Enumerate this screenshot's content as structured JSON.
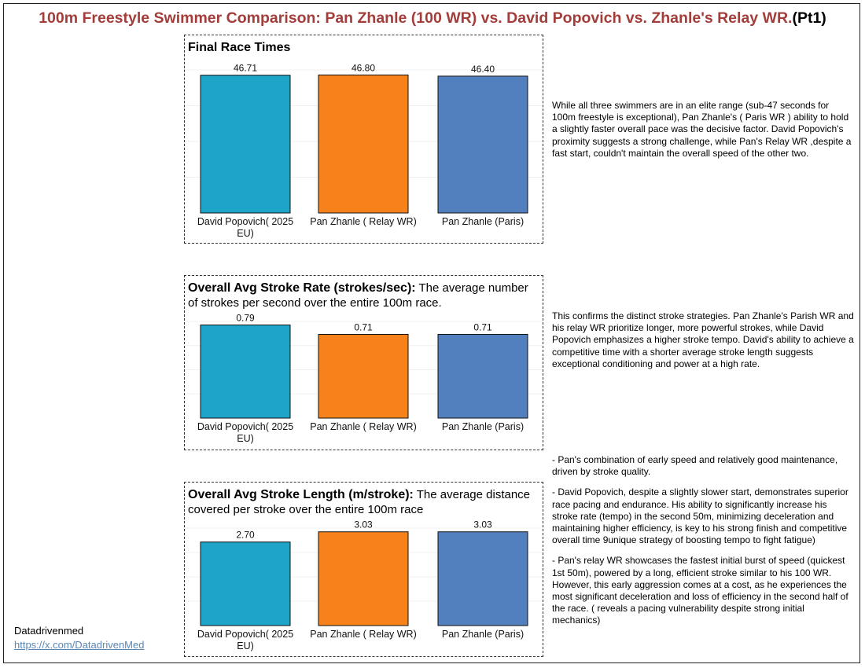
{
  "title": {
    "main": "100m Freestyle Swimmer Comparison: Pan Zhanle (100 WR) vs. David Popovich vs. Zhanle's Relay WR.",
    "suffix": "(Pt1)"
  },
  "colors": {
    "title": "#a33d3a",
    "bars": [
      "#1ea4c9",
      "#f7821b",
      "#5280be"
    ]
  },
  "chart_data": [
    {
      "type": "bar",
      "title": "Final Race Times",
      "subtitle": "",
      "categories": [
        [
          "David Popovich( 2025",
          "EU)"
        ],
        [
          "Pan Zhanle ( Relay WR)"
        ],
        [
          "Pan Zhanle (Paris)"
        ]
      ],
      "values": [
        46.71,
        46.8,
        46.4
      ],
      "value_labels": [
        "46.71",
        "46.80",
        "46.40"
      ],
      "ylim": [
        0,
        48.5
      ],
      "grid": true
    },
    {
      "type": "bar",
      "title": "Overall Avg Stroke Rate (strokes/sec):",
      "subtitle": " The average number of strokes per second over the entire 100m race.",
      "categories": [
        [
          "David Popovich( 2025",
          "EU)"
        ],
        [
          "Pan Zhanle ( Relay WR)"
        ],
        [
          "Pan Zhanle (Paris)"
        ]
      ],
      "values": [
        0.79,
        0.71,
        0.71
      ],
      "value_labels": [
        "0.79",
        "0.71",
        "0.71"
      ],
      "ylim": [
        0,
        0.82
      ],
      "grid": true
    },
    {
      "type": "bar",
      "title": "Overall Avg Stroke Length (m/stroke):",
      "subtitle": " The average distance covered per stroke over the entire 100m race",
      "categories": [
        [
          "David Popovich( 2025",
          "EU)"
        ],
        [
          "Pan Zhanle ( Relay WR)"
        ],
        [
          "Pan Zhanle (Paris)"
        ]
      ],
      "values": [
        2.7,
        3.03,
        3.03
      ],
      "value_labels": [
        "2.70",
        "3.03",
        "3.03"
      ],
      "ylim": [
        0,
        3.15
      ],
      "grid": true
    }
  ],
  "notes": {
    "n1": "While all three swimmers are in an elite range (sub-47 seconds for 100m freestyle is exceptional), Pan Zhanle's ( Paris WR ) ability to hold a slightly faster overall pace was the decisive factor. David Popovich's proximity suggests a strong challenge, while Pan's Relay WR ,despite a fast start, couldn't maintain the overall speed of the other two.",
    "n2": "This confirms the distinct stroke strategies. Pan Zhanle's Parish WR and his relay WR prioritize longer, more powerful strokes, while David Popovich emphasizes a higher stroke tempo. David's ability to achieve a competitive time with a shorter average stroke length suggests exceptional conditioning and power at a high rate.",
    "n3a": "- Pan's combination of early speed and relatively good maintenance, driven by stroke quality.",
    "n3b": "- David Popovich, despite a slightly slower start, demonstrates superior race pacing and endurance. His ability to significantly increase his stroke rate (tempo) in the second 50m, minimizing deceleration and maintaining higher efficiency, is key to his strong finish and competitive overall time 9unique strategy of boosting tempo to fight fatigue)",
    "n3c": "- Pan's relay WR showcases the fastest initial burst of speed (quickest 1st 50m), powered by a long, efficient stroke similar to his 100 WR. However, this early aggression comes at a cost, as he experiences the most significant deceleration and loss of efficiency in the second half of the race. ( reveals a pacing vulnerability despite strong initial mechanics)"
  },
  "credit": {
    "name": "Datadrivenmed",
    "link": "https://x.com/DatadrivenMed"
  }
}
